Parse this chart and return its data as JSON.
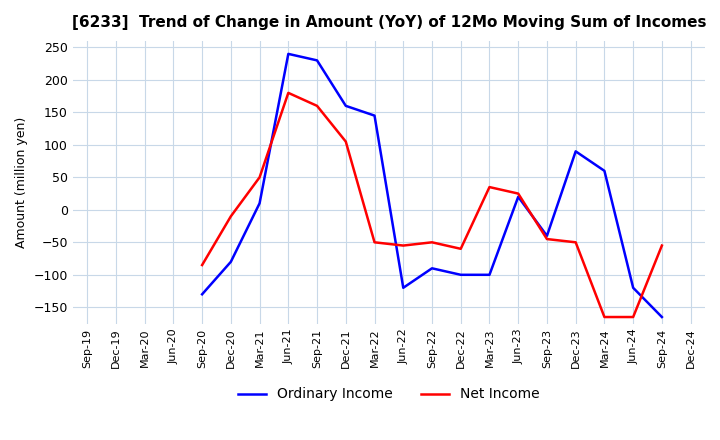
{
  "title": "[6233]  Trend of Change in Amount (YoY) of 12Mo Moving Sum of Incomes",
  "ylabel": "Amount (million yen)",
  "ylim": [
    -175,
    260
  ],
  "yticks": [
    -150,
    -100,
    -50,
    0,
    50,
    100,
    150,
    200,
    250
  ],
  "background_color": "#ffffff",
  "grid_color": "#c8d8e8",
  "x_labels": [
    "Sep-19",
    "Dec-19",
    "Mar-20",
    "Jun-20",
    "Sep-20",
    "Dec-20",
    "Mar-21",
    "Jun-21",
    "Sep-21",
    "Dec-21",
    "Mar-22",
    "Jun-22",
    "Sep-22",
    "Dec-22",
    "Mar-23",
    "Jun-23",
    "Sep-23",
    "Dec-23",
    "Mar-24",
    "Jun-24",
    "Sep-24",
    "Dec-24"
  ],
  "ordinary_income": [
    null,
    null,
    null,
    null,
    -130,
    -80,
    10,
    240,
    230,
    160,
    145,
    -120,
    -90,
    -100,
    -100,
    20,
    -40,
    90,
    60,
    -120,
    -165,
    null
  ],
  "net_income": [
    null,
    null,
    null,
    null,
    -85,
    -10,
    50,
    180,
    160,
    105,
    -50,
    -55,
    -50,
    -60,
    35,
    25,
    -45,
    -50,
    -165,
    -165,
    -55,
    null
  ],
  "ordinary_color": "#0000ff",
  "net_color": "#ff0000",
  "line_width": 1.8
}
